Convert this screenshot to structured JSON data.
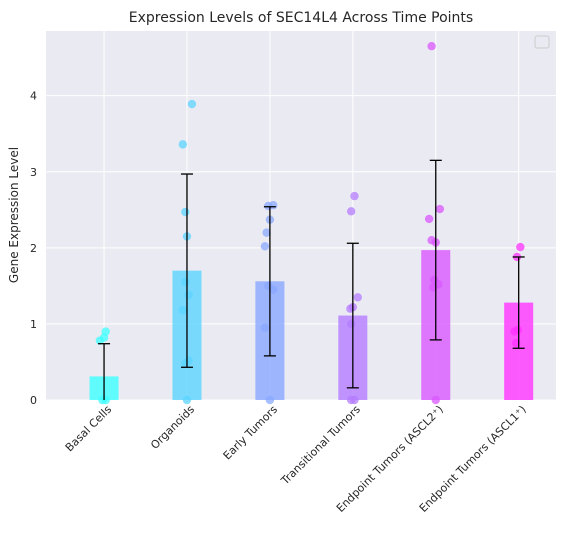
{
  "chart_data": {
    "type": "bar",
    "title": "Expression Levels of SEC14L4 Across Time Points",
    "xlabel": "",
    "ylabel": "Gene Expression Level",
    "ylim": [
      0,
      4.85
    ],
    "yticks": [
      0,
      1,
      2,
      3,
      4
    ],
    "ytick_labels": [
      "0",
      "1",
      "2",
      "3",
      "4"
    ],
    "grid": true,
    "legend": "top-right (empty)",
    "categories": [
      "Basal Cells",
      "Organoids",
      "Early Tumors",
      "Transitional Tumors",
      "Endpoint Tumors (ASCL2⁺)",
      "Endpoint Tumors (ASCL1⁺)"
    ],
    "values": [
      0.31,
      1.7,
      1.56,
      1.11,
      1.97,
      1.28
    ],
    "errors": [
      0.43,
      1.27,
      0.98,
      0.95,
      1.18,
      0.6
    ],
    "colors": [
      "#3dffff",
      "#5bd4ff",
      "#8aa8ff",
      "#b47cff",
      "#d957ff",
      "#ff33ff"
    ],
    "points": [
      [
        0.0,
        0.0,
        0.78,
        0.82,
        0.9
      ],
      [
        0.0,
        0.48,
        0.52,
        1.18,
        1.38,
        1.55,
        2.15,
        2.47,
        3.36,
        3.89
      ],
      [
        0.0,
        0.95,
        1.45,
        1.5,
        2.02,
        2.2,
        2.37,
        2.55,
        2.56
      ],
      [
        0.0,
        0.0,
        1.0,
        1.2,
        1.22,
        1.35,
        2.48,
        2.68
      ],
      [
        0.0,
        1.48,
        1.52,
        1.58,
        2.07,
        2.1,
        2.38,
        2.51,
        4.65
      ],
      [
        0.75,
        0.9,
        0.92,
        1.88,
        2.01
      ]
    ],
    "point_jitter": [
      [
        0.02,
        -0.02,
        -0.05,
        0.0,
        0.02
      ],
      [
        0.0,
        -0.02,
        0.02,
        -0.05,
        0.02,
        -0.02,
        0.0,
        -0.02,
        -0.05,
        0.06
      ],
      [
        0.0,
        -0.06,
        0.04,
        -0.02,
        -0.06,
        -0.04,
        0.0,
        -0.02,
        0.04
      ],
      [
        -0.02,
        0.02,
        -0.02,
        -0.03,
        0.0,
        0.06,
        -0.02,
        0.02
      ],
      [
        0.0,
        -0.03,
        0.03,
        -0.02,
        0.0,
        -0.05,
        -0.08,
        0.05,
        -0.05
      ],
      [
        -0.03,
        -0.05,
        -0.01,
        -0.02,
        0.02
      ]
    ]
  }
}
